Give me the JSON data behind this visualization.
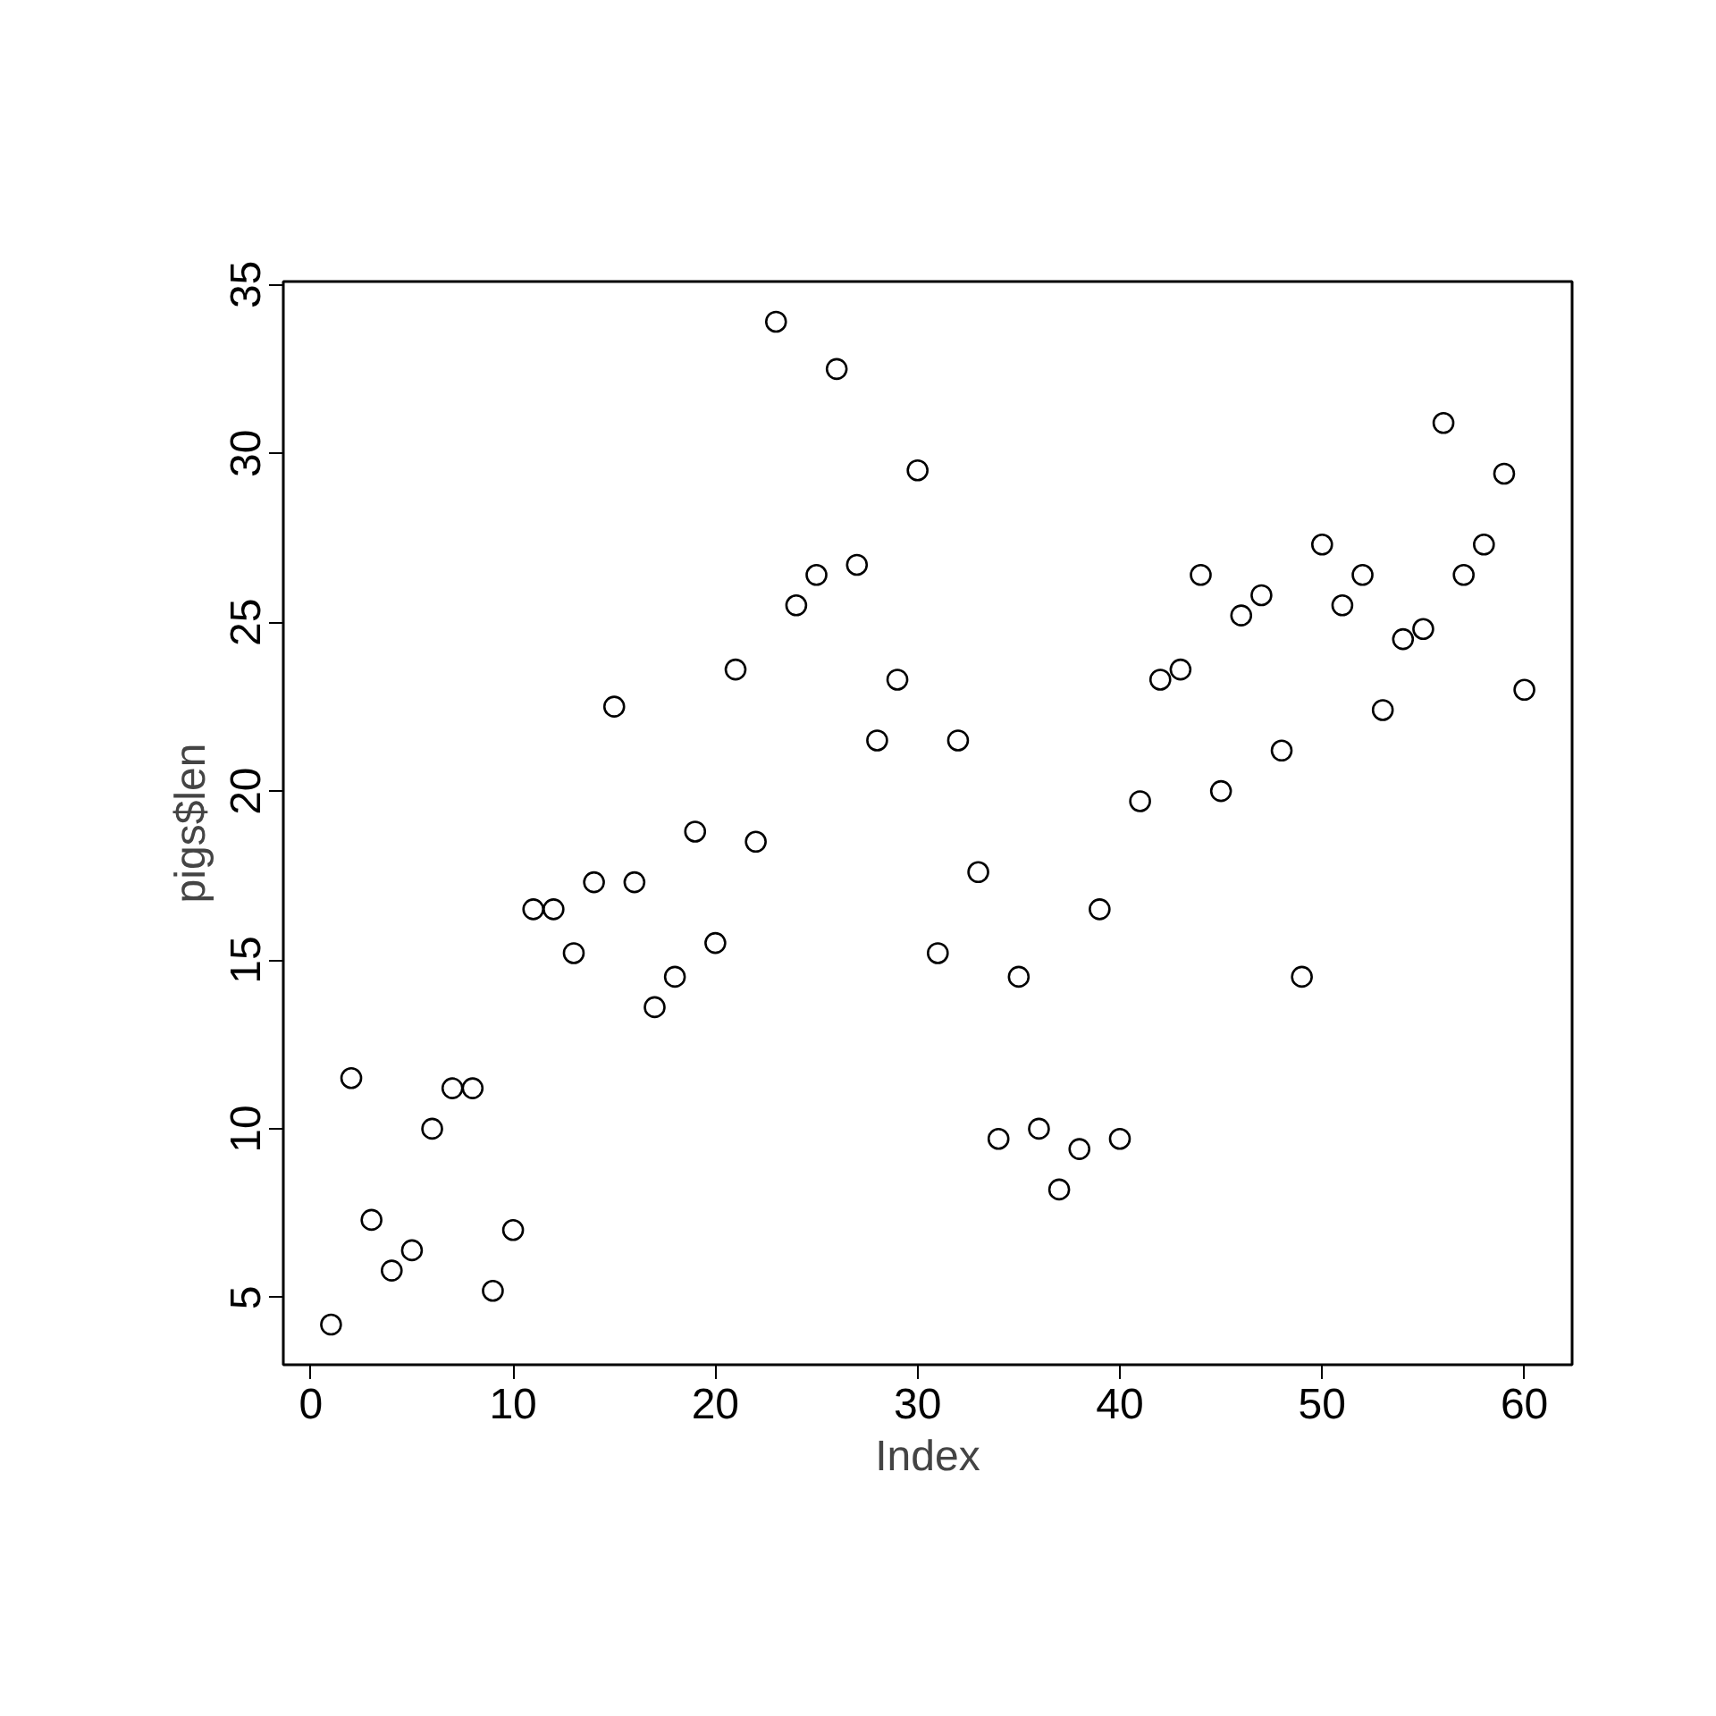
{
  "chart_data": {
    "type": "scatter",
    "xlabel": "Index",
    "ylabel": "pigs$len",
    "x": [
      1,
      2,
      3,
      4,
      5,
      6,
      7,
      8,
      9,
      10,
      11,
      12,
      13,
      14,
      15,
      16,
      17,
      18,
      19,
      20,
      21,
      22,
      23,
      24,
      25,
      26,
      27,
      28,
      29,
      30,
      31,
      32,
      33,
      34,
      35,
      36,
      37,
      38,
      39,
      40,
      41,
      42,
      43,
      44,
      45,
      46,
      47,
      48,
      49,
      50,
      51,
      52,
      53,
      54,
      55,
      56,
      57,
      58,
      59,
      60
    ],
    "values": [
      4.2,
      11.5,
      7.3,
      5.8,
      6.4,
      10,
      11.2,
      11.2,
      5.2,
      7,
      16.5,
      16.5,
      15.2,
      17.3,
      22.5,
      17.3,
      13.6,
      14.5,
      18.8,
      15.5,
      23.6,
      18.5,
      33.9,
      25.5,
      26.4,
      32.5,
      26.7,
      21.5,
      23.3,
      29.5,
      15.2,
      21.5,
      17.6,
      9.7,
      14.5,
      10,
      8.2,
      9.4,
      16.5,
      9.7,
      19.7,
      23.3,
      23.6,
      26.4,
      20,
      25.2,
      25.8,
      21.2,
      14.5,
      27.3,
      25.5,
      26.4,
      22.4,
      24.5,
      24.8,
      30.9,
      26.4,
      27.3,
      29.4,
      23
    ],
    "color": "#000000",
    "marker": "circle",
    "grid": false,
    "xlim": [
      -1.36,
      62.36
    ],
    "ylim": [
      3.01,
      35.09
    ],
    "xticks": [
      0,
      10,
      20,
      30,
      40,
      50,
      60
    ],
    "yticks": [
      5,
      10,
      15,
      20,
      25,
      30,
      35
    ]
  }
}
